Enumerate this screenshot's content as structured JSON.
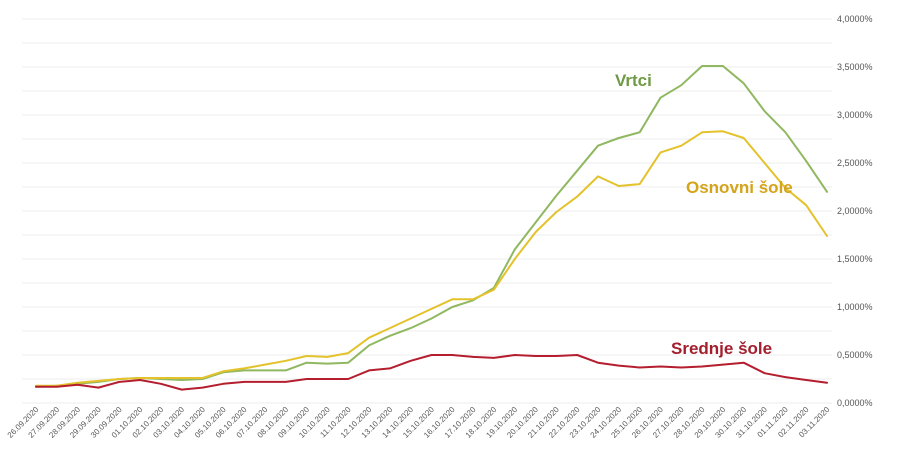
{
  "chart_data": {
    "type": "line",
    "title": "",
    "xlabel": "",
    "ylabel": "",
    "ylim": [
      0,
      4
    ],
    "y_unit": "%",
    "grid": true,
    "y_axis_position": "right",
    "y_ticks": [
      0,
      0.5,
      1,
      1.5,
      2,
      2.5,
      3,
      3.5,
      4
    ],
    "y_tick_labels": [
      "0,0000%",
      "0,5000%",
      "1,0000%",
      "1,5000%",
      "2,0000%",
      "2,5000%",
      "3,0000%",
      "3,5000%",
      "4,0000%"
    ],
    "x": [
      "26.09.2020",
      "27.09.2020",
      "28.09.2020",
      "29.09.2020",
      "30.09.2020",
      "01.10.2020",
      "02.10.2020",
      "03.10.2020",
      "04.10.2020",
      "05.10.2020",
      "06.10.2020",
      "07.10.2020",
      "08.10.2020",
      "09.10.2020",
      "10.10.2020",
      "11.10.2020",
      "12.10.2020",
      "13.10.2020",
      "14.10.2020",
      "15.10.2020",
      "16.10.2020",
      "17.10.2020",
      "18.10.2020",
      "19.10.2020",
      "20.10.2020",
      "21.10.2020",
      "22.10.2020",
      "23.10.2020",
      "24.10.2020",
      "25.10.2020",
      "26.10.2020",
      "27.10.2020",
      "28.10.2020",
      "29.10.2020",
      "30.10.2020",
      "31.10.2020",
      "01.11.2020",
      "02.11.2020",
      "03.11.2020"
    ],
    "series": [
      {
        "name": "Vrtci",
        "color": "#8fb860",
        "label_color": "#6f9a45",
        "values": [
          0.17,
          0.18,
          0.2,
          0.22,
          0.25,
          0.26,
          0.25,
          0.24,
          0.25,
          0.32,
          0.34,
          0.34,
          0.34,
          0.42,
          0.41,
          0.42,
          0.6,
          0.7,
          0.78,
          0.88,
          1.0,
          1.07,
          1.2,
          1.6,
          1.88,
          2.16,
          2.42,
          2.68,
          2.76,
          2.82,
          3.18,
          3.31,
          3.51,
          3.51,
          3.33,
          3.04,
          2.82,
          2.52,
          2.2
        ]
      },
      {
        "name": "Osnovni šole",
        "color": "#e3c22c",
        "label_color": "#d4a41b",
        "values": [
          0.18,
          0.18,
          0.21,
          0.23,
          0.25,
          0.26,
          0.26,
          0.26,
          0.26,
          0.33,
          0.36,
          0.4,
          0.44,
          0.49,
          0.48,
          0.52,
          0.68,
          0.78,
          0.88,
          0.98,
          1.08,
          1.08,
          1.18,
          1.5,
          1.78,
          1.99,
          2.15,
          2.36,
          2.26,
          2.28,
          2.61,
          2.68,
          2.82,
          2.83,
          2.76,
          2.5,
          2.24,
          2.06,
          1.74
        ]
      },
      {
        "name": "Srednje šole",
        "color": "#b41e2e",
        "label_color": "#a31f2e",
        "values": [
          0.17,
          0.17,
          0.19,
          0.16,
          0.22,
          0.24,
          0.2,
          0.14,
          0.16,
          0.2,
          0.22,
          0.22,
          0.22,
          0.25,
          0.25,
          0.25,
          0.34,
          0.36,
          0.44,
          0.5,
          0.5,
          0.48,
          0.47,
          0.5,
          0.49,
          0.49,
          0.5,
          0.42,
          0.39,
          0.37,
          0.38,
          0.37,
          0.38,
          0.4,
          0.42,
          0.31,
          0.27,
          0.24,
          0.21
        ]
      }
    ]
  }
}
